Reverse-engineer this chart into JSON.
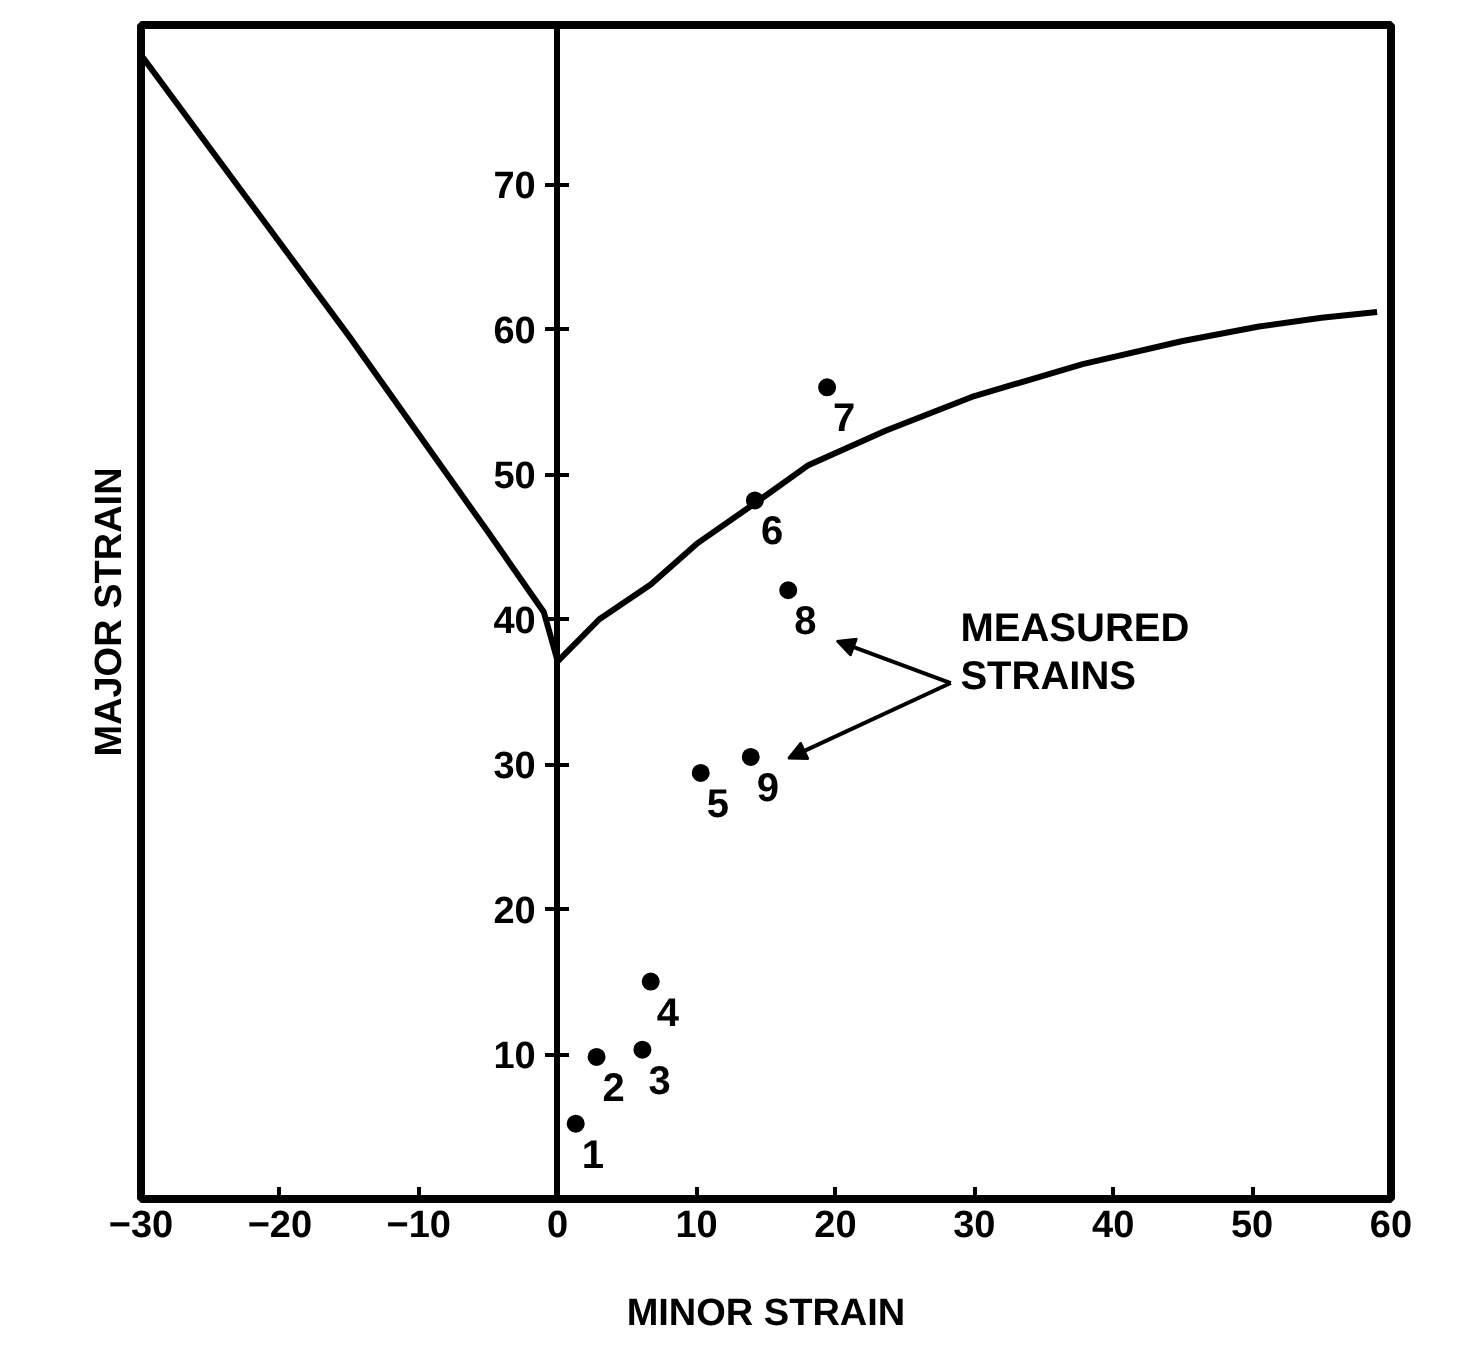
{
  "chart_data": {
    "type": "scatter",
    "xlabel": "MINOR STRAIN",
    "ylabel": "MAJOR STRAIN",
    "xlim": [
      -30,
      60
    ],
    "ylim": [
      0,
      81
    ],
    "xticks": [
      -30,
      -20,
      -10,
      0,
      10,
      20,
      30,
      40,
      50,
      60
    ],
    "yticks": [
      10,
      20,
      30,
      40,
      50,
      60,
      70
    ],
    "grid": false,
    "series": [
      {
        "type": "line",
        "color": "#000000",
        "line_style": "solid",
        "marker": "none",
        "x": [
          -29.9,
          -15,
          -5,
          -1,
          0,
          3,
          6.7,
          10,
          14.2,
          18,
          23.6,
          30,
          37.8,
          45,
          50.5,
          55,
          59
        ],
        "values": [
          78.8,
          59.5,
          46,
          40.5,
          37.1,
          40,
          42.4,
          45.2,
          48,
          50.6,
          53,
          55.4,
          57.6,
          59.2,
          60.2,
          60.8,
          61.2
        ]
      },
      {
        "color": "#000000",
        "marker": "circle",
        "x": [
          1.3,
          2.8,
          6.1,
          6.7,
          10.3,
          14.2,
          19.4,
          16.6,
          13.9
        ],
        "values": [
          5.2,
          9.8,
          10.3,
          15,
          29.4,
          48.2,
          56,
          42,
          30.5
        ]
      }
    ],
    "annotations": [
      {
        "text": "1",
        "x": 1.3,
        "y": 5.2
      },
      {
        "text": "2",
        "x": 2.8,
        "y": 9.8
      },
      {
        "text": "3",
        "x": 6.1,
        "y": 10.3
      },
      {
        "text": "4",
        "x": 6.7,
        "y": 15
      },
      {
        "text": "5",
        "x": 10.3,
        "y": 29.4
      },
      {
        "text": "6",
        "x": 14.2,
        "y": 48.2
      },
      {
        "text": "7",
        "x": 19.4,
        "y": 56
      },
      {
        "text": "8",
        "x": 16.6,
        "y": 42
      },
      {
        "text": "9",
        "x": 13.9,
        "y": 30.5
      },
      "MEASURED\nSTRAINS"
    ]
  }
}
